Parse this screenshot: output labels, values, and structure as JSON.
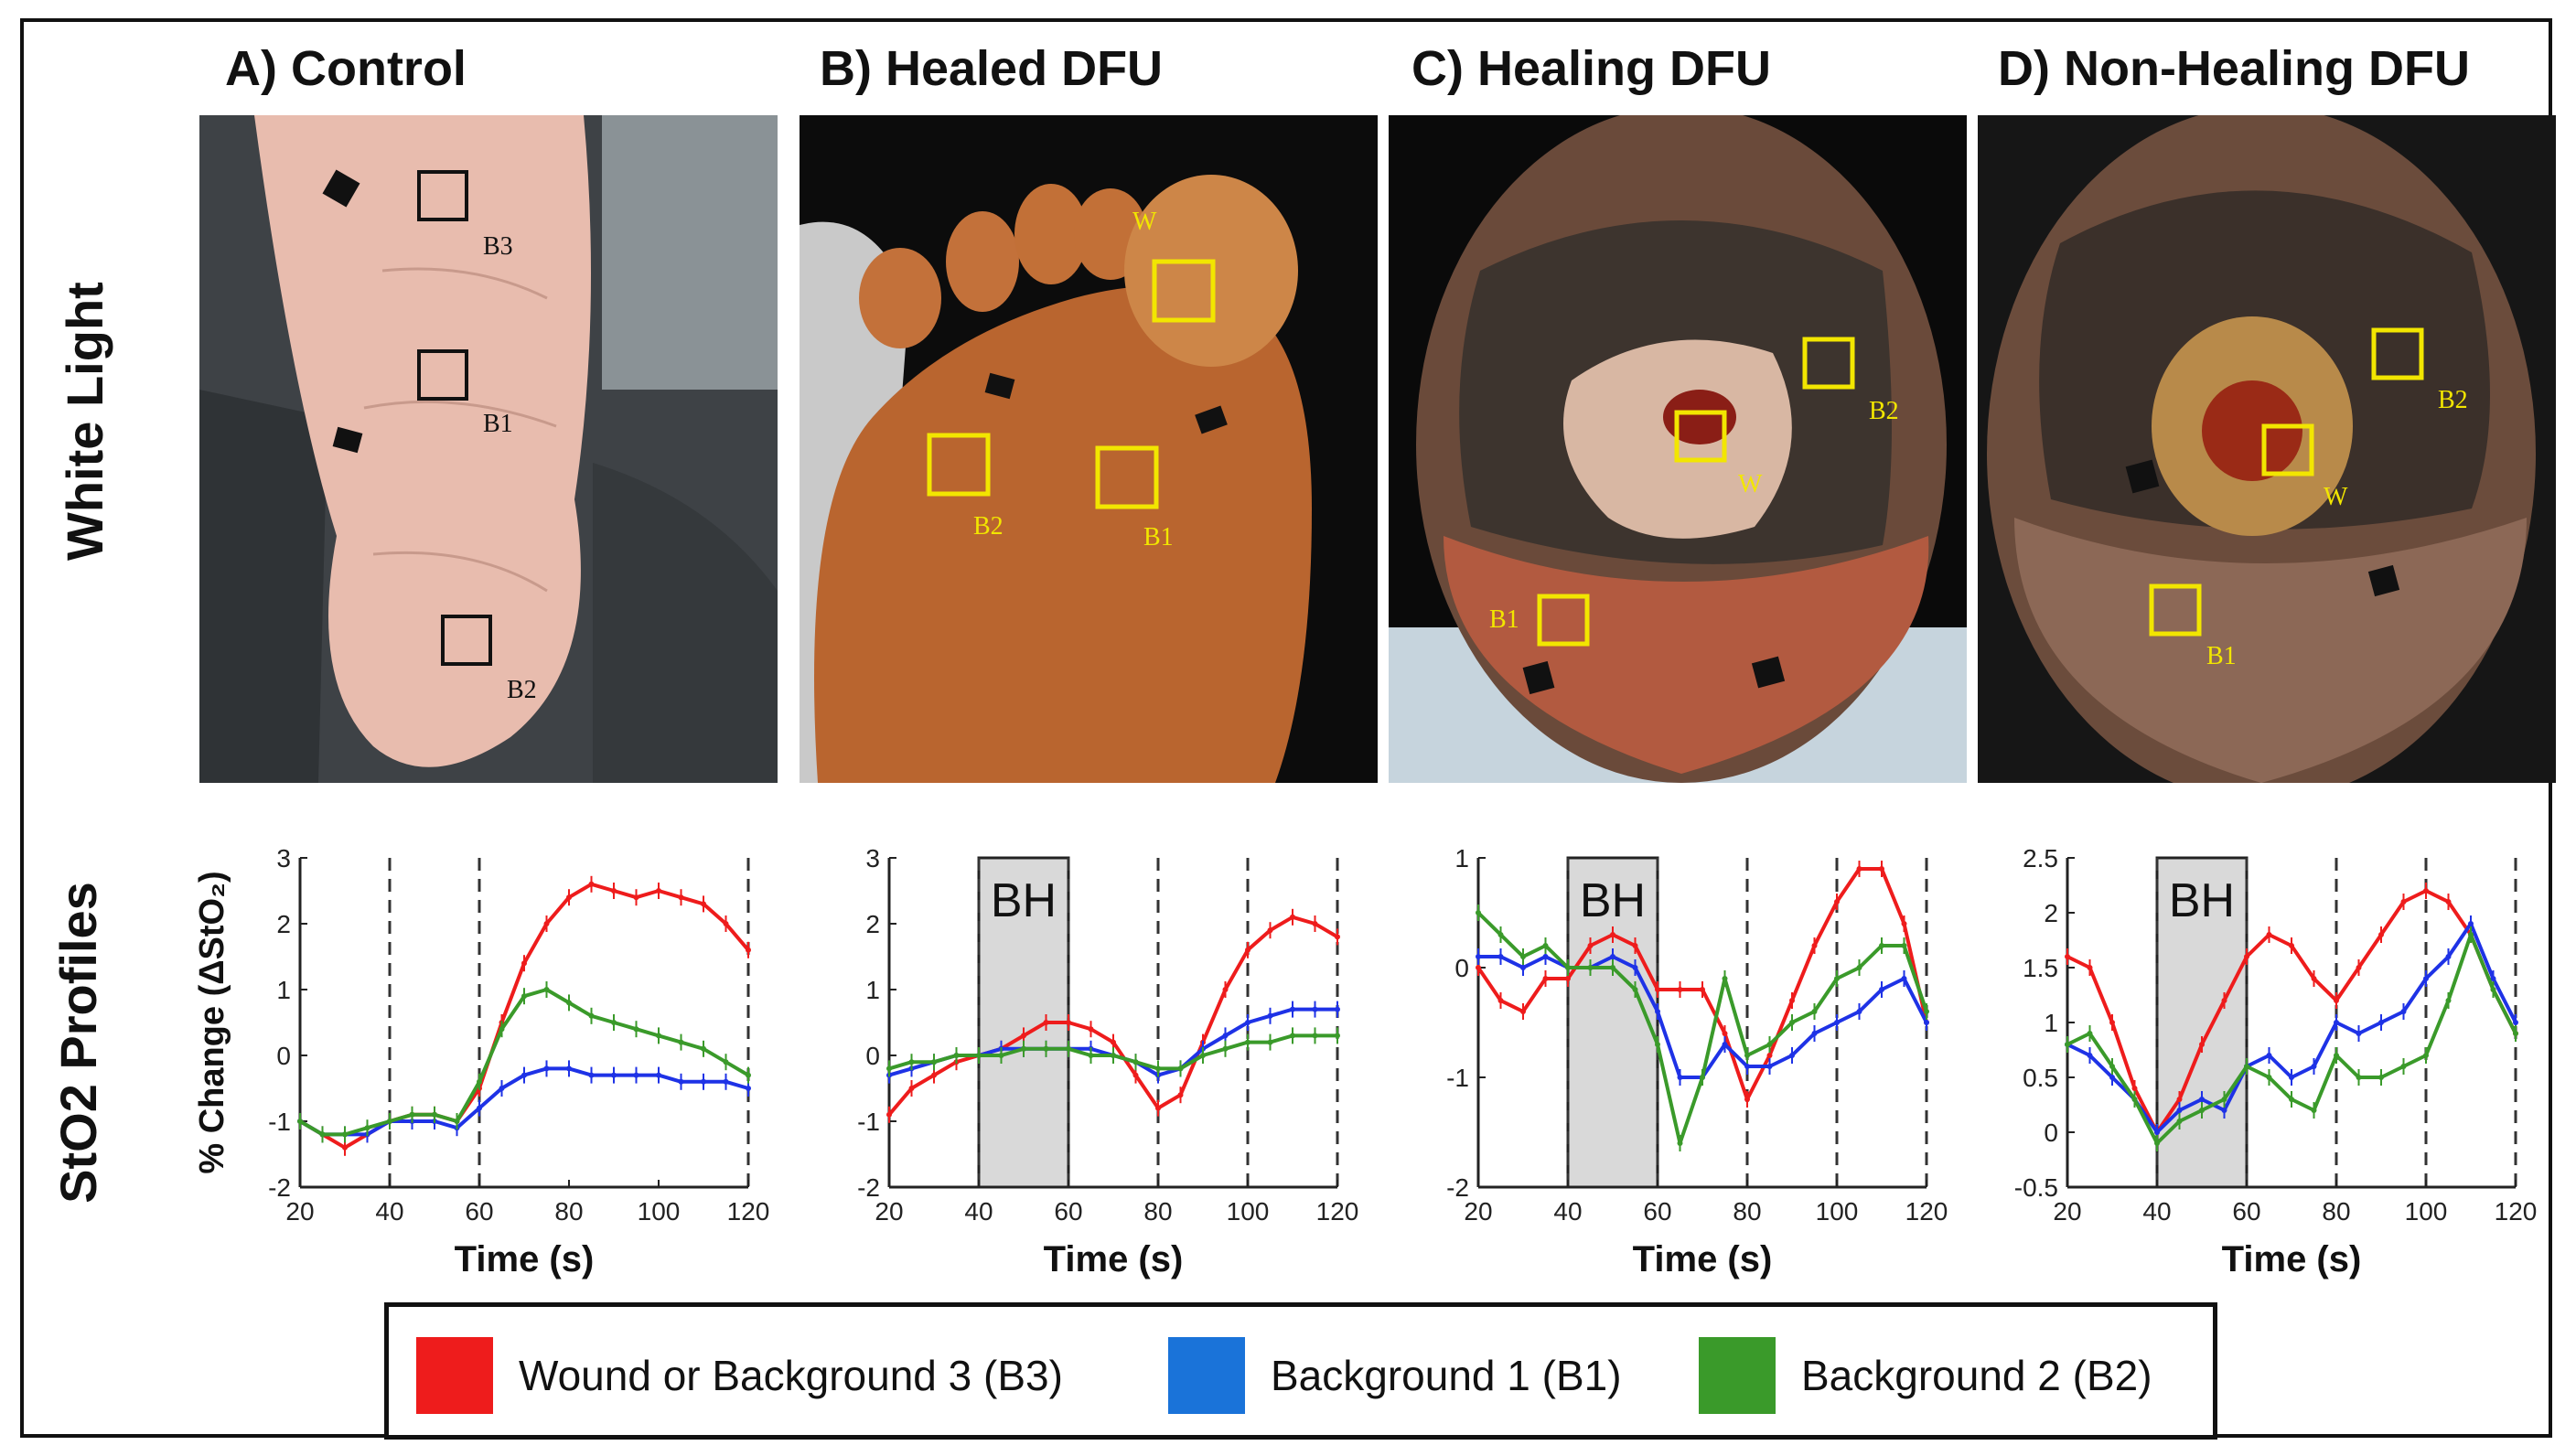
{
  "row_labels": {
    "top": "White Light",
    "bottom": "StO2 Profiles"
  },
  "panels": [
    {
      "title": "A) Control",
      "roi_color": "#111111",
      "rois": [
        "B3",
        "B1",
        "B2"
      ]
    },
    {
      "title": "B) Healed DFU",
      "roi_color": "#f2e600",
      "rois": [
        "W",
        "B2",
        "B1"
      ]
    },
    {
      "title": "C) Healing DFU",
      "roi_color": "#f2e600",
      "rois": [
        "B2",
        "W",
        "B1"
      ]
    },
    {
      "title": "D) Non-Healing DFU",
      "roi_color": "#f2e600",
      "rois": [
        "B2",
        "W",
        "B1"
      ]
    }
  ],
  "colors": {
    "red": "#ee1c1c",
    "blue": "#1e32e6",
    "green": "#3a9a2a",
    "bh_fill": "#d9d9d9"
  },
  "legend": [
    {
      "label": "Wound or Background 3 (B3)",
      "color": "#ee1c1c"
    },
    {
      "label": "Background 1 (B1)",
      "color": "#1a73d9"
    },
    {
      "label": "Background 2 (B2)",
      "color": "#3a9a2a"
    }
  ],
  "chart_data": [
    {
      "type": "line",
      "panel": "A) Control",
      "ylabel": "% Change (ΔStO₂)",
      "xlabel": "Time (s)",
      "xlim": [
        20,
        120
      ],
      "ylim": [
        -2,
        3
      ],
      "xticks": [
        20,
        40,
        60,
        80,
        100,
        120
      ],
      "yticks": [
        -2,
        -1,
        0,
        1,
        2,
        3
      ],
      "dashed_x": [
        40,
        60,
        120
      ],
      "bh": null,
      "x": [
        20,
        25,
        30,
        35,
        40,
        45,
        50,
        55,
        60,
        65,
        70,
        75,
        80,
        85,
        90,
        95,
        100,
        105,
        110,
        115,
        120
      ],
      "series": [
        {
          "name": "Wound or Background 3 (B3)",
          "color": "red",
          "values": [
            -1.0,
            -1.2,
            -1.4,
            -1.2,
            -1.0,
            -0.9,
            -0.9,
            -1.0,
            -0.5,
            0.5,
            1.4,
            2.0,
            2.4,
            2.6,
            2.5,
            2.4,
            2.5,
            2.4,
            2.3,
            2.0,
            1.6
          ]
        },
        {
          "name": "Background 1 (B1)",
          "color": "blue",
          "values": [
            -1.0,
            -1.2,
            -1.2,
            -1.2,
            -1.0,
            -1.0,
            -1.0,
            -1.1,
            -0.8,
            -0.5,
            -0.3,
            -0.2,
            -0.2,
            -0.3,
            -0.3,
            -0.3,
            -0.3,
            -0.4,
            -0.4,
            -0.4,
            -0.5
          ]
        },
        {
          "name": "Background 2 (B2)",
          "color": "green",
          "values": [
            -1.0,
            -1.2,
            -1.2,
            -1.1,
            -1.0,
            -0.9,
            -0.9,
            -1.0,
            -0.4,
            0.4,
            0.9,
            1.0,
            0.8,
            0.6,
            0.5,
            0.4,
            0.3,
            0.2,
            0.1,
            -0.1,
            -0.3
          ]
        }
      ]
    },
    {
      "type": "line",
      "panel": "B) Healed DFU",
      "xlabel": "Time (s)",
      "xlim": [
        20,
        120
      ],
      "ylim": [
        -2,
        3
      ],
      "xticks": [
        20,
        40,
        60,
        80,
        100,
        120
      ],
      "yticks": [
        -2,
        -1,
        0,
        1,
        2,
        3
      ],
      "dashed_x": [
        80,
        100,
        120
      ],
      "bh": [
        40,
        60
      ],
      "bh_label": "BH",
      "x": [
        20,
        25,
        30,
        35,
        40,
        45,
        50,
        55,
        60,
        65,
        70,
        75,
        80,
        85,
        90,
        95,
        100,
        105,
        110,
        115,
        120
      ],
      "series": [
        {
          "name": "Wound or Background 3 (B3)",
          "color": "red",
          "values": [
            -0.9,
            -0.5,
            -0.3,
            -0.1,
            0.0,
            0.1,
            0.3,
            0.5,
            0.5,
            0.4,
            0.2,
            -0.3,
            -0.8,
            -0.6,
            0.2,
            1.0,
            1.6,
            1.9,
            2.1,
            2.0,
            1.8
          ]
        },
        {
          "name": "Background 1 (B1)",
          "color": "blue",
          "values": [
            -0.3,
            -0.2,
            -0.1,
            0.0,
            0.0,
            0.1,
            0.1,
            0.1,
            0.1,
            0.1,
            0.0,
            -0.1,
            -0.3,
            -0.2,
            0.1,
            0.3,
            0.5,
            0.6,
            0.7,
            0.7,
            0.7
          ]
        },
        {
          "name": "Background 2 (B2)",
          "color": "green",
          "values": [
            -0.2,
            -0.1,
            -0.1,
            0.0,
            0.0,
            0.0,
            0.1,
            0.1,
            0.1,
            0.0,
            0.0,
            -0.1,
            -0.2,
            -0.2,
            0.0,
            0.1,
            0.2,
            0.2,
            0.3,
            0.3,
            0.3
          ]
        }
      ]
    },
    {
      "type": "line",
      "panel": "C) Healing DFU",
      "xlabel": "Time (s)",
      "xlim": [
        20,
        120
      ],
      "ylim": [
        -2,
        1
      ],
      "xticks": [
        20,
        40,
        60,
        80,
        100,
        120
      ],
      "yticks": [
        -2,
        -1,
        0,
        1
      ],
      "dashed_x": [
        80,
        100,
        120
      ],
      "bh": [
        40,
        60
      ],
      "bh_label": "BH",
      "x": [
        20,
        25,
        30,
        35,
        40,
        45,
        50,
        55,
        60,
        65,
        70,
        75,
        80,
        85,
        90,
        95,
        100,
        105,
        110,
        115,
        120
      ],
      "series": [
        {
          "name": "Wound or Background 3 (B3)",
          "color": "red",
          "values": [
            0.0,
            -0.3,
            -0.4,
            -0.1,
            -0.1,
            0.2,
            0.3,
            0.2,
            -0.2,
            -0.2,
            -0.2,
            -0.6,
            -1.2,
            -0.8,
            -0.3,
            0.2,
            0.6,
            0.9,
            0.9,
            0.4,
            -0.5
          ]
        },
        {
          "name": "Background 1 (B1)",
          "color": "blue",
          "values": [
            0.1,
            0.1,
            0.0,
            0.1,
            0.0,
            0.0,
            0.1,
            0.0,
            -0.4,
            -1.0,
            -1.0,
            -0.7,
            -0.9,
            -0.9,
            -0.8,
            -0.6,
            -0.5,
            -0.4,
            -0.2,
            -0.1,
            -0.5
          ]
        },
        {
          "name": "Background 2 (B2)",
          "color": "green",
          "values": [
            0.5,
            0.3,
            0.1,
            0.2,
            0.0,
            0.0,
            0.0,
            -0.2,
            -0.7,
            -1.6,
            -1.0,
            -0.1,
            -0.8,
            -0.7,
            -0.5,
            -0.4,
            -0.1,
            0.0,
            0.2,
            0.2,
            -0.4
          ]
        }
      ]
    },
    {
      "type": "line",
      "panel": "D) Non-Healing DFU",
      "xlabel": "Time (s)",
      "xlim": [
        20,
        120
      ],
      "ylim": [
        -0.5,
        2.5
      ],
      "xticks": [
        20,
        40,
        60,
        80,
        100,
        120
      ],
      "yticks": [
        -0.5,
        0,
        0.5,
        1,
        1.5,
        2,
        2.5
      ],
      "dashed_x": [
        80,
        100,
        120
      ],
      "bh": [
        40,
        60
      ],
      "bh_label": "BH",
      "x": [
        20,
        25,
        30,
        35,
        40,
        45,
        50,
        55,
        60,
        65,
        70,
        75,
        80,
        85,
        90,
        95,
        100,
        105,
        110,
        115,
        120
      ],
      "series": [
        {
          "name": "Wound or Background 3 (B3)",
          "color": "red",
          "values": [
            1.6,
            1.5,
            1.0,
            0.4,
            0.0,
            0.3,
            0.8,
            1.2,
            1.6,
            1.8,
            1.7,
            1.4,
            1.2,
            1.5,
            1.8,
            2.1,
            2.2,
            2.1,
            1.8,
            1.3,
            0.9
          ]
        },
        {
          "name": "Background 1 (B1)",
          "color": "blue",
          "values": [
            0.8,
            0.7,
            0.5,
            0.3,
            0.0,
            0.2,
            0.3,
            0.2,
            0.6,
            0.7,
            0.5,
            0.6,
            1.0,
            0.9,
            1.0,
            1.1,
            1.4,
            1.6,
            1.9,
            1.4,
            1.0
          ]
        },
        {
          "name": "Background 2 (B2)",
          "color": "green",
          "values": [
            0.8,
            0.9,
            0.6,
            0.3,
            -0.1,
            0.1,
            0.2,
            0.3,
            0.6,
            0.5,
            0.3,
            0.2,
            0.7,
            0.5,
            0.5,
            0.6,
            0.7,
            1.2,
            1.8,
            1.3,
            0.9
          ]
        }
      ]
    }
  ]
}
